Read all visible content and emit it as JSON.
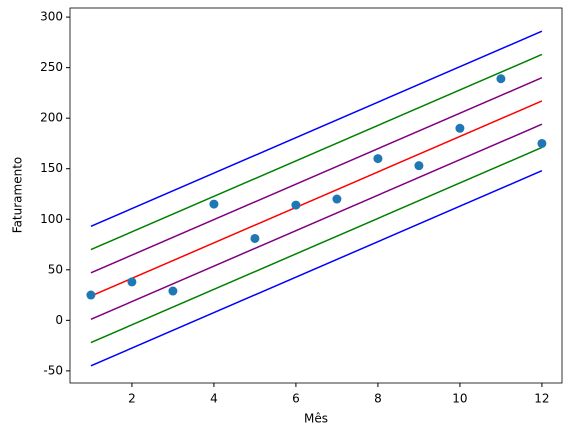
{
  "chart_data": {
    "type": "scatter",
    "xlabel": "Mês",
    "ylabel": "Faturamento",
    "xlim": [
      0.49,
      12.49
    ],
    "ylim": [
      -62,
      309
    ],
    "xticks": [
      2,
      4,
      6,
      8,
      10,
      12
    ],
    "yticks": [
      -50,
      0,
      50,
      100,
      150,
      200,
      250,
      300
    ],
    "grid": false,
    "series": [
      {
        "type": "scatter",
        "color": "#1f77b4",
        "x": [
          1,
          2,
          3,
          4,
          5,
          6,
          7,
          8,
          9,
          10,
          11,
          12
        ],
        "values": [
          25,
          38,
          29,
          115,
          81,
          114,
          120,
          160,
          153,
          190,
          239,
          175
        ]
      },
      {
        "type": "line",
        "color": "#ff0000",
        "x": [
          1,
          12
        ],
        "values": [
          24,
          217
        ]
      },
      {
        "type": "line",
        "color": "#800080",
        "x": [
          1,
          12
        ],
        "values": [
          47,
          240
        ]
      },
      {
        "type": "line",
        "color": "#800080",
        "x": [
          1,
          12
        ],
        "values": [
          1,
          194
        ]
      },
      {
        "type": "line",
        "color": "#008000",
        "x": [
          1,
          12
        ],
        "values": [
          70,
          263
        ]
      },
      {
        "type": "line",
        "color": "#008000",
        "x": [
          1,
          12
        ],
        "values": [
          -22,
          171
        ]
      },
      {
        "type": "line",
        "color": "#0000ff",
        "x": [
          1,
          12
        ],
        "values": [
          93,
          286
        ]
      },
      {
        "type": "line",
        "color": "#0000ff",
        "x": [
          1,
          12
        ],
        "values": [
          -45,
          148
        ]
      }
    ]
  }
}
